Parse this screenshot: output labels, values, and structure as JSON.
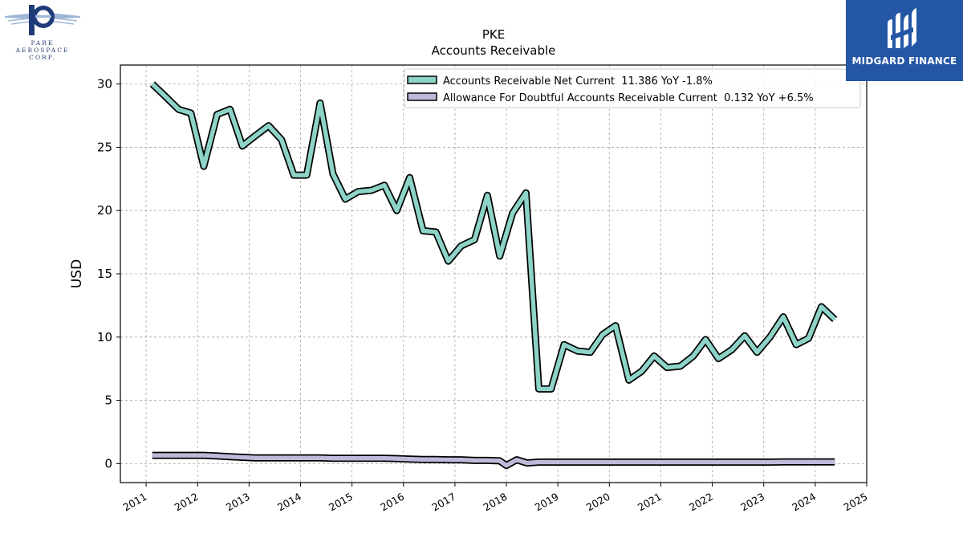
{
  "logos": {
    "left": {
      "lines": [
        "PARK",
        "AEROSPACE",
        "CORP."
      ]
    },
    "right": {
      "name": "MIDGARD FINANCE"
    }
  },
  "chart_data": {
    "type": "line",
    "title": "PKE",
    "subtitle": "Accounts Receivable",
    "xlabel": "",
    "ylabel": "USD",
    "xlim": [
      2010.5,
      2025.0
    ],
    "ylim": [
      -1.5,
      31.5
    ],
    "x_ticks": [
      2011,
      2012,
      2013,
      2014,
      2015,
      2016,
      2017,
      2018,
      2019,
      2020,
      2021,
      2022,
      2023,
      2024,
      2025
    ],
    "y_ticks": [
      0,
      5,
      10,
      15,
      20,
      25,
      30
    ],
    "grid": true,
    "legend_position": "top-right",
    "series": [
      {
        "name": "Accounts Receivable Net Current  11.386 YoY -1.8%",
        "color": "#8dd3c7",
        "points": [
          [
            2011.12,
            30.0
          ],
          [
            2011.38,
            29.0
          ],
          [
            2011.63,
            28.0
          ],
          [
            2011.87,
            27.7
          ],
          [
            2012.12,
            23.5
          ],
          [
            2012.38,
            27.6
          ],
          [
            2012.63,
            28.0
          ],
          [
            2012.87,
            25.1
          ],
          [
            2013.12,
            25.9
          ],
          [
            2013.38,
            26.7
          ],
          [
            2013.63,
            25.6
          ],
          [
            2013.87,
            22.8
          ],
          [
            2014.12,
            22.8
          ],
          [
            2014.38,
            28.5
          ],
          [
            2014.63,
            22.9
          ],
          [
            2014.87,
            20.9
          ],
          [
            2015.12,
            21.5
          ],
          [
            2015.38,
            21.6
          ],
          [
            2015.63,
            22.0
          ],
          [
            2015.87,
            20.0
          ],
          [
            2016.12,
            22.6
          ],
          [
            2016.38,
            18.4
          ],
          [
            2016.63,
            18.3
          ],
          [
            2016.87,
            16.0
          ],
          [
            2017.12,
            17.2
          ],
          [
            2017.38,
            17.7
          ],
          [
            2017.63,
            21.2
          ],
          [
            2017.87,
            16.4
          ],
          [
            2018.12,
            19.8
          ],
          [
            2018.38,
            21.4
          ],
          [
            2018.63,
            5.9
          ],
          [
            2018.87,
            5.9
          ],
          [
            2019.12,
            9.4
          ],
          [
            2019.38,
            8.9
          ],
          [
            2019.63,
            8.8
          ],
          [
            2019.87,
            10.2
          ],
          [
            2020.12,
            10.9
          ],
          [
            2020.38,
            6.6
          ],
          [
            2020.63,
            7.3
          ],
          [
            2020.87,
            8.5
          ],
          [
            2021.12,
            7.6
          ],
          [
            2021.38,
            7.7
          ],
          [
            2021.63,
            8.5
          ],
          [
            2021.87,
            9.8
          ],
          [
            2022.12,
            8.3
          ],
          [
            2022.38,
            9.0
          ],
          [
            2022.63,
            10.1
          ],
          [
            2022.87,
            8.8
          ],
          [
            2023.12,
            10.0
          ],
          [
            2023.38,
            11.6
          ],
          [
            2023.63,
            9.4
          ],
          [
            2023.87,
            9.9
          ],
          [
            2024.12,
            12.4
          ],
          [
            2024.38,
            11.386
          ]
        ]
      },
      {
        "name": "Allowance For Doubtful Accounts Receivable Current  0.132 YoY +6.5%",
        "color": "#bebada",
        "points": [
          [
            2011.12,
            0.65
          ],
          [
            2011.38,
            0.65
          ],
          [
            2011.63,
            0.65
          ],
          [
            2011.87,
            0.65
          ],
          [
            2012.12,
            0.65
          ],
          [
            2012.38,
            0.6
          ],
          [
            2012.63,
            0.55
          ],
          [
            2012.87,
            0.5
          ],
          [
            2013.12,
            0.45
          ],
          [
            2013.38,
            0.45
          ],
          [
            2013.63,
            0.45
          ],
          [
            2013.87,
            0.45
          ],
          [
            2014.12,
            0.45
          ],
          [
            2014.38,
            0.45
          ],
          [
            2014.63,
            0.42
          ],
          [
            2014.87,
            0.42
          ],
          [
            2015.12,
            0.42
          ],
          [
            2015.38,
            0.42
          ],
          [
            2015.63,
            0.42
          ],
          [
            2015.87,
            0.4
          ],
          [
            2016.12,
            0.35
          ],
          [
            2016.38,
            0.32
          ],
          [
            2016.63,
            0.32
          ],
          [
            2016.87,
            0.3
          ],
          [
            2017.12,
            0.3
          ],
          [
            2017.38,
            0.25
          ],
          [
            2017.63,
            0.25
          ],
          [
            2017.87,
            0.22
          ],
          [
            2018.0,
            -0.15
          ],
          [
            2018.2,
            0.3
          ],
          [
            2018.4,
            0.05
          ],
          [
            2018.63,
            0.12
          ],
          [
            2018.87,
            0.12
          ],
          [
            2019.12,
            0.12
          ],
          [
            2019.38,
            0.12
          ],
          [
            2019.63,
            0.12
          ],
          [
            2019.87,
            0.12
          ],
          [
            2020.12,
            0.12
          ],
          [
            2020.38,
            0.12
          ],
          [
            2020.63,
            0.12
          ],
          [
            2020.87,
            0.12
          ],
          [
            2021.12,
            0.12
          ],
          [
            2021.38,
            0.12
          ],
          [
            2021.63,
            0.12
          ],
          [
            2021.87,
            0.12
          ],
          [
            2022.12,
            0.12
          ],
          [
            2022.38,
            0.12
          ],
          [
            2022.63,
            0.12
          ],
          [
            2022.87,
            0.12
          ],
          [
            2023.12,
            0.12
          ],
          [
            2023.38,
            0.13
          ],
          [
            2023.63,
            0.13
          ],
          [
            2023.87,
            0.13
          ],
          [
            2024.12,
            0.13
          ],
          [
            2024.38,
            0.132
          ]
        ]
      }
    ]
  }
}
